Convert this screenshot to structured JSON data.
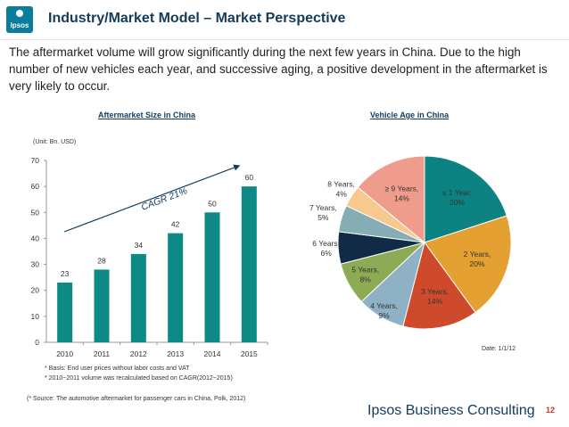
{
  "header": {
    "logo_text": "Ipsos",
    "title": "Industry/Market Model – Market Perspective",
    "intro": "The aftermarket volume will grow significantly during the next few years in China. Due to the high number of new vehicles each year, and successive aging, a positive development in the aftermarket is very likely to occur."
  },
  "chart_data": [
    {
      "type": "bar",
      "title": "Aftermarket Size in China",
      "unit_label": "(Unit: Bn. USD)",
      "categories": [
        "2010",
        "2011",
        "2012",
        "2013",
        "2014",
        "2015"
      ],
      "values": [
        23,
        28,
        34,
        42,
        50,
        60
      ],
      "value_labels": [
        "23",
        "28",
        "34",
        "42",
        "50",
        "60"
      ],
      "yticks": [
        "0",
        "10",
        "20",
        "30",
        "40",
        "50",
        "60",
        "70"
      ],
      "ylim": [
        0,
        70
      ],
      "annotation": "CAGR 21%",
      "bar_color": "#0d8a85",
      "notes": [
        "* Basis: End user prices without labor costs and VAT",
        "* 2010~2011 volume was recalculated based on CAGR(2012~2015)"
      ]
    },
    {
      "type": "pie",
      "title": "Vehicle Age in China",
      "slices": [
        {
          "name": "≤ 1 Year",
          "value": 20,
          "label_lines": [
            "≤ 1 Year,",
            "20%"
          ],
          "color": "#0d8283"
        },
        {
          "name": "2 Years",
          "value": 20,
          "label_lines": [
            "2 Years,",
            "20%"
          ],
          "color": "#e4a030"
        },
        {
          "name": "3 Years",
          "value": 14,
          "label_lines": [
            "3 Years,",
            "14%"
          ],
          "color": "#cf4a2b"
        },
        {
          "name": "4 Years",
          "value": 9,
          "label_lines": [
            "4 Years,",
            "9%"
          ],
          "color": "#8fb1c5"
        },
        {
          "name": "5 Years",
          "value": 8,
          "label_lines": [
            "5 Years,",
            "8%"
          ],
          "color": "#8daa55"
        },
        {
          "name": "6 Years",
          "value": 6,
          "label_lines": [
            "6 Years,",
            "6%"
          ],
          "color": "#112a45"
        },
        {
          "name": "7 Years",
          "value": 5,
          "label_lines": [
            "7 Years,",
            "5%"
          ],
          "color": "#84adb5"
        },
        {
          "name": "8 Years",
          "value": 4,
          "label_lines": [
            "8 Years,",
            "4%"
          ],
          "color": "#f7c98e"
        },
        {
          "name": "≥ 9 Years",
          "value": 14,
          "label_lines": [
            "≥ 9 Years,",
            "14%"
          ],
          "color": "#ef9c8c"
        }
      ],
      "date_label": "Date: 1/1/12"
    }
  ],
  "footer": {
    "source": "(* Source: The automotive aftermarket for passenger cars in China, Polk, 2012)",
    "brand": "Ipsos Business Consulting",
    "page": "12"
  }
}
